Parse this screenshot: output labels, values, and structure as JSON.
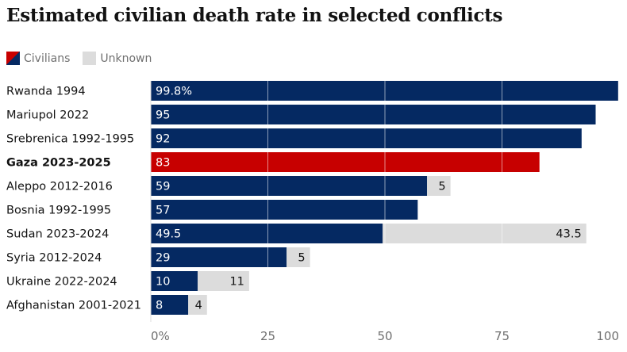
{
  "title": "Estimated civilian death rate in selected conflicts",
  "legend": {
    "civilians": "Civilians",
    "unknown": "Unknown"
  },
  "colors": {
    "civilians": "#052962",
    "highlight": "#c70000",
    "unknown": "#dcdcdc"
  },
  "chart_data": {
    "type": "bar",
    "orientation": "horizontal",
    "stacked": true,
    "title": "Estimated civilian death rate in selected conflicts",
    "categories": [
      "Rwanda 1994",
      "Mariupol 2022",
      "Srebrenica 1992-1995",
      "Gaza 2023-2025",
      "Aleppo 2012-2016",
      "Bosnia 1992-1995",
      "Sudan 2023-2024",
      "Syria 2012-2024",
      "Ukraine 2022-2024",
      "Afghanistan 2001-2021"
    ],
    "highlight": "Gaza 2023-2025",
    "series": [
      {
        "name": "Civilians",
        "values": [
          99.8,
          95,
          92,
          83,
          59,
          57,
          49.5,
          29,
          10,
          8
        ],
        "labels": [
          "99.8%",
          "95",
          "92",
          "83",
          "59",
          "57",
          "49.5",
          "29",
          "10",
          "8"
        ]
      },
      {
        "name": "Unknown",
        "values": [
          null,
          null,
          null,
          null,
          5,
          null,
          43.5,
          5,
          11,
          4
        ],
        "labels": [
          "",
          "",
          "",
          "",
          "5",
          "",
          "43.5",
          "5",
          "11",
          "4"
        ]
      }
    ],
    "xlim": [
      0,
      100
    ],
    "xticks": [
      0,
      25,
      50,
      75,
      100
    ],
    "xtick_labels": [
      "0%",
      "25",
      "50",
      "75",
      "100"
    ],
    "grid": true,
    "legend_position": "top-left"
  }
}
